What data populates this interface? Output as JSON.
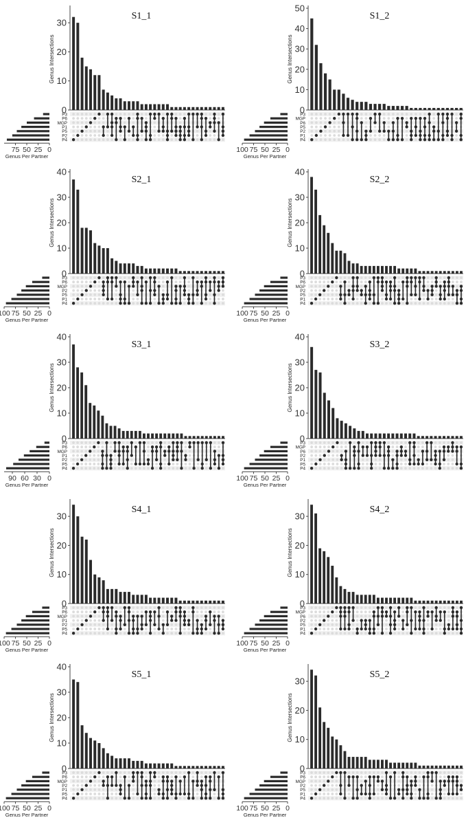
{
  "figure": {
    "shared_labels": {
      "ylabel": "Genus Intersections",
      "set_size_label": "Genus Per Partner"
    },
    "colors": {
      "bar": "#2b2b2b",
      "dot_on": "#2b2b2b",
      "dot_off": "#dcdcdc",
      "axis": "#444444",
      "row_shade": "#f0f0f0"
    }
  },
  "chart_data": [
    {
      "type": "bar",
      "title": "S1_1",
      "ylim": [
        0,
        35
      ],
      "yticks": [
        0,
        10,
        20,
        30
      ],
      "values": [
        32,
        30,
        18,
        15,
        14,
        12,
        12,
        7,
        6,
        5,
        4,
        4,
        3,
        3,
        3,
        3,
        2,
        2,
        2,
        2,
        2,
        2,
        2,
        1,
        1,
        1,
        1,
        1,
        1,
        1,
        1,
        1,
        1,
        1,
        1,
        1
      ],
      "sets": [
        "P3",
        "P6",
        "MGP",
        "P1",
        "P5",
        "P2",
        "P4"
      ],
      "set_sizes": [
        14,
        34,
        50,
        62,
        72,
        82,
        94
      ],
      "set_xlim": [
        100,
        0
      ],
      "set_ticks": [
        75,
        50,
        25,
        0
      ],
      "grid": false,
      "legend": "none"
    },
    {
      "type": "bar",
      "title": "S1_2",
      "ylim": [
        0,
        50
      ],
      "yticks": [
        0,
        10,
        20,
        30,
        40,
        50
      ],
      "values": [
        45,
        32,
        23,
        18,
        15,
        10,
        10,
        8,
        6,
        5,
        4,
        4,
        4,
        3,
        3,
        3,
        3,
        2,
        2,
        2,
        2,
        2,
        1,
        1,
        1,
        1,
        1,
        1,
        1,
        1,
        1,
        1,
        1,
        1
      ],
      "sets": [
        "P3",
        "MGP",
        "P6",
        "P5",
        "P2",
        "P1",
        "P4"
      ],
      "set_sizes": [
        16,
        38,
        52,
        62,
        72,
        84,
        96
      ],
      "set_xlim": [
        100,
        0
      ],
      "set_ticks": [
        100,
        75,
        50,
        25,
        0
      ],
      "grid": false,
      "legend": "none"
    },
    {
      "type": "bar",
      "title": "S2_1",
      "ylim": [
        0,
        40
      ],
      "yticks": [
        0,
        10,
        20,
        30,
        40
      ],
      "values": [
        37,
        33,
        18,
        18,
        17,
        12,
        11,
        10,
        10,
        6,
        5,
        4,
        4,
        4,
        4,
        3,
        3,
        2,
        2,
        2,
        2,
        2,
        2,
        2,
        2,
        1,
        1,
        1,
        1,
        1,
        1,
        1,
        1,
        1,
        1,
        1
      ],
      "sets": [
        "P3",
        "P6",
        "MGP",
        "P2",
        "P5",
        "P1",
        "P4"
      ],
      "set_sizes": [
        16,
        38,
        52,
        62,
        72,
        84,
        96
      ],
      "set_xlim": [
        100,
        0
      ],
      "set_ticks": [
        100,
        75,
        50,
        25,
        0
      ],
      "grid": false,
      "legend": "none"
    },
    {
      "type": "bar",
      "title": "S2_2",
      "ylim": [
        0,
        40
      ],
      "yticks": [
        0,
        10,
        20,
        30,
        40
      ],
      "values": [
        38,
        33,
        23,
        19,
        16,
        12,
        9,
        9,
        8,
        5,
        4,
        4,
        3,
        3,
        3,
        3,
        3,
        3,
        3,
        3,
        3,
        2,
        2,
        2,
        2,
        2,
        1,
        1,
        1,
        1,
        1,
        1,
        1,
        1,
        1,
        1,
        1
      ],
      "sets": [
        "P3",
        "P6",
        "MGP",
        "P2",
        "P5",
        "P1",
        "P4"
      ],
      "set_sizes": [
        16,
        38,
        52,
        62,
        72,
        84,
        96
      ],
      "set_xlim": [
        100,
        0
      ],
      "set_ticks": [
        100,
        75,
        50,
        25,
        0
      ],
      "grid": false,
      "legend": "none"
    },
    {
      "type": "bar",
      "title": "S3_1",
      "ylim": [
        0,
        40
      ],
      "yticks": [
        0,
        10,
        20,
        30,
        40
      ],
      "values": [
        37,
        28,
        26,
        21,
        14,
        13,
        11,
        9,
        6,
        5,
        5,
        4,
        3,
        3,
        3,
        3,
        3,
        2,
        2,
        2,
        2,
        2,
        2,
        2,
        2,
        2,
        2,
        1,
        1,
        1,
        1,
        1,
        1,
        1,
        1,
        1,
        1
      ],
      "sets": [
        "P3",
        "P6",
        "MGP",
        "P1",
        "P2",
        "P5",
        "P4"
      ],
      "set_sizes": [
        12,
        32,
        48,
        62,
        75,
        88,
        105
      ],
      "set_xlim": [
        110,
        0
      ],
      "set_ticks": [
        90,
        60,
        30,
        0
      ],
      "grid": false,
      "legend": "none"
    },
    {
      "type": "bar",
      "title": "S3_2",
      "ylim": [
        0,
        40
      ],
      "yticks": [
        0,
        10,
        20,
        30,
        40
      ],
      "values": [
        36,
        27,
        26,
        18,
        15,
        12,
        8,
        7,
        6,
        5,
        4,
        3,
        3,
        2,
        2,
        2,
        2,
        2,
        2,
        2,
        2,
        2,
        2,
        2,
        2,
        1,
        1,
        1,
        1,
        1,
        1,
        1,
        1,
        1,
        1,
        1
      ],
      "sets": [
        "P3",
        "MGP",
        "P6",
        "P2",
        "P1",
        "P5",
        "P4"
      ],
      "set_sizes": [
        16,
        38,
        52,
        62,
        72,
        84,
        96
      ],
      "set_xlim": [
        100,
        0
      ],
      "set_ticks": [
        100,
        75,
        50,
        25,
        0
      ],
      "grid": false,
      "legend": "none"
    },
    {
      "type": "bar",
      "title": "S4_1",
      "ylim": [
        0,
        35
      ],
      "yticks": [
        0,
        10,
        20,
        30
      ],
      "values": [
        34,
        30,
        23,
        22,
        15,
        10,
        9,
        8,
        5,
        5,
        5,
        4,
        4,
        4,
        3,
        3,
        3,
        3,
        2,
        2,
        2,
        2,
        2,
        2,
        2,
        1,
        1,
        1,
        1,
        1,
        1,
        1,
        1,
        1,
        1,
        1
      ],
      "sets": [
        "P3",
        "P6",
        "MGP",
        "P1",
        "P2",
        "P5",
        "P4"
      ],
      "set_sizes": [
        16,
        38,
        52,
        62,
        72,
        84,
        96
      ],
      "set_xlim": [
        100,
        0
      ],
      "set_ticks": [
        100,
        75,
        50,
        25,
        0
      ],
      "grid": false,
      "legend": "none"
    },
    {
      "type": "bar",
      "title": "S4_2",
      "ylim": [
        0,
        35
      ],
      "yticks": [
        0,
        10,
        20,
        30
      ],
      "values": [
        34,
        31,
        19,
        18,
        16,
        13,
        9,
        6,
        5,
        4,
        4,
        3,
        3,
        3,
        3,
        3,
        2,
        2,
        2,
        2,
        2,
        2,
        2,
        2,
        2,
        1,
        1,
        1,
        1,
        1,
        1,
        1,
        1,
        1,
        1,
        1,
        1
      ],
      "sets": [
        "P3",
        "MGP",
        "P6",
        "P2",
        "P5",
        "P1",
        "P4"
      ],
      "set_sizes": [
        16,
        38,
        52,
        62,
        72,
        84,
        96
      ],
      "set_xlim": [
        100,
        0
      ],
      "set_ticks": [
        100,
        75,
        50,
        25,
        0
      ],
      "grid": false,
      "legend": "none"
    },
    {
      "type": "bar",
      "title": "S5_1",
      "ylim": [
        0,
        40
      ],
      "yticks": [
        0,
        10,
        20,
        30,
        40
      ],
      "values": [
        35,
        34,
        17,
        14,
        12,
        11,
        10,
        8,
        6,
        5,
        4,
        4,
        4,
        4,
        3,
        3,
        3,
        2,
        2,
        2,
        2,
        2,
        2,
        2,
        1,
        1,
        1,
        1,
        1,
        1,
        1,
        1,
        1,
        1,
        1,
        1
      ],
      "sets": [
        "P3",
        "P6",
        "MGP",
        "P2",
        "P1",
        "P5",
        "P4"
      ],
      "set_sizes": [
        16,
        38,
        52,
        62,
        72,
        84,
        96
      ],
      "set_xlim": [
        100,
        0
      ],
      "set_ticks": [
        100,
        75,
        50,
        25,
        0
      ],
      "grid": false,
      "legend": "none"
    },
    {
      "type": "bar",
      "title": "S5_2",
      "ylim": [
        0,
        35
      ],
      "yticks": [
        0,
        10,
        20,
        30
      ],
      "values": [
        34,
        32,
        21,
        16,
        14,
        11,
        10,
        8,
        6,
        4,
        4,
        4,
        4,
        4,
        3,
        3,
        3,
        3,
        3,
        2,
        2,
        2,
        2,
        2,
        2,
        2,
        1,
        1,
        1,
        1,
        1,
        1,
        1,
        1,
        1,
        1,
        1
      ],
      "sets": [
        "P3",
        "P6",
        "MGP",
        "P2",
        "P5",
        "P1",
        "P4"
      ],
      "set_sizes": [
        16,
        38,
        52,
        62,
        72,
        84,
        96
      ],
      "set_xlim": [
        100,
        0
      ],
      "set_ticks": [
        100,
        75,
        50,
        25,
        0
      ],
      "grid": false,
      "legend": "none"
    }
  ]
}
